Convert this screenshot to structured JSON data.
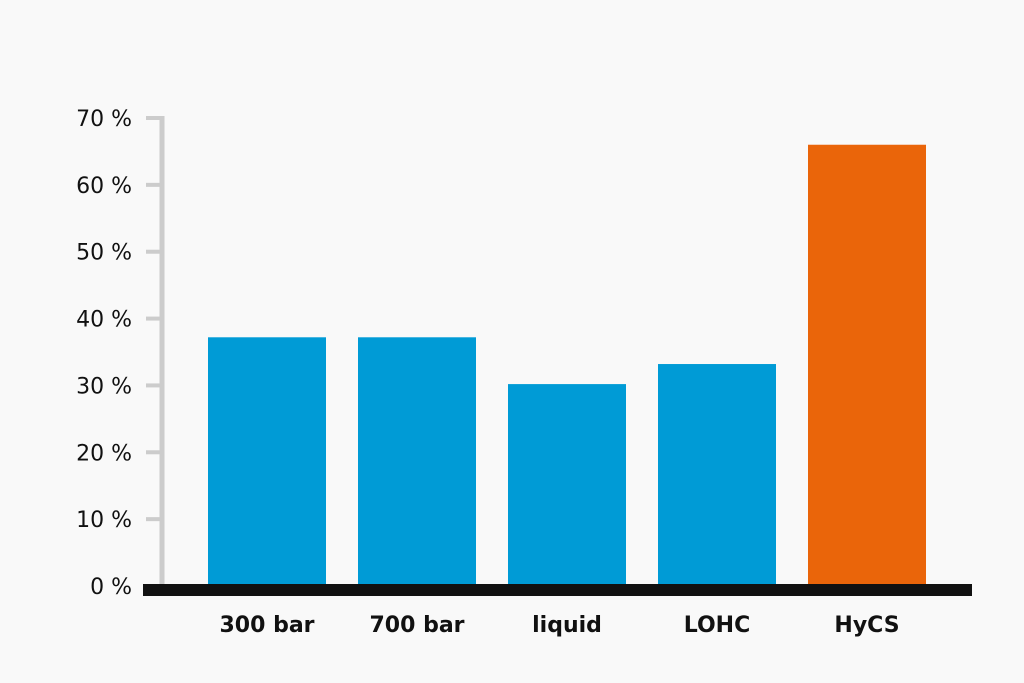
{
  "chart_data": {
    "type": "bar",
    "title": "",
    "xlabel": "",
    "ylabel": "",
    "ylim": [
      0,
      70
    ],
    "yticks": [
      0,
      10,
      20,
      30,
      40,
      50,
      60,
      70
    ],
    "ytick_labels": [
      "0 %",
      "10 %",
      "20 %",
      "30 %",
      "40 %",
      "50 %",
      "60 %",
      "70 %"
    ],
    "categories": [
      "300 bar",
      "700 bar",
      "liquid",
      "LOHC",
      "HyCS"
    ],
    "values": [
      37.2,
      37.2,
      30.2,
      33.2,
      66
    ],
    "bar_colors": [
      "#009bd6",
      "#009bd6",
      "#009bd6",
      "#009bd6",
      "#ea650a"
    ],
    "grid": false,
    "legend": "none"
  },
  "colors": {
    "background": "#f9f9f9",
    "axis_y": "#cccccc",
    "baseline": "#111111",
    "text": "#111111"
  }
}
